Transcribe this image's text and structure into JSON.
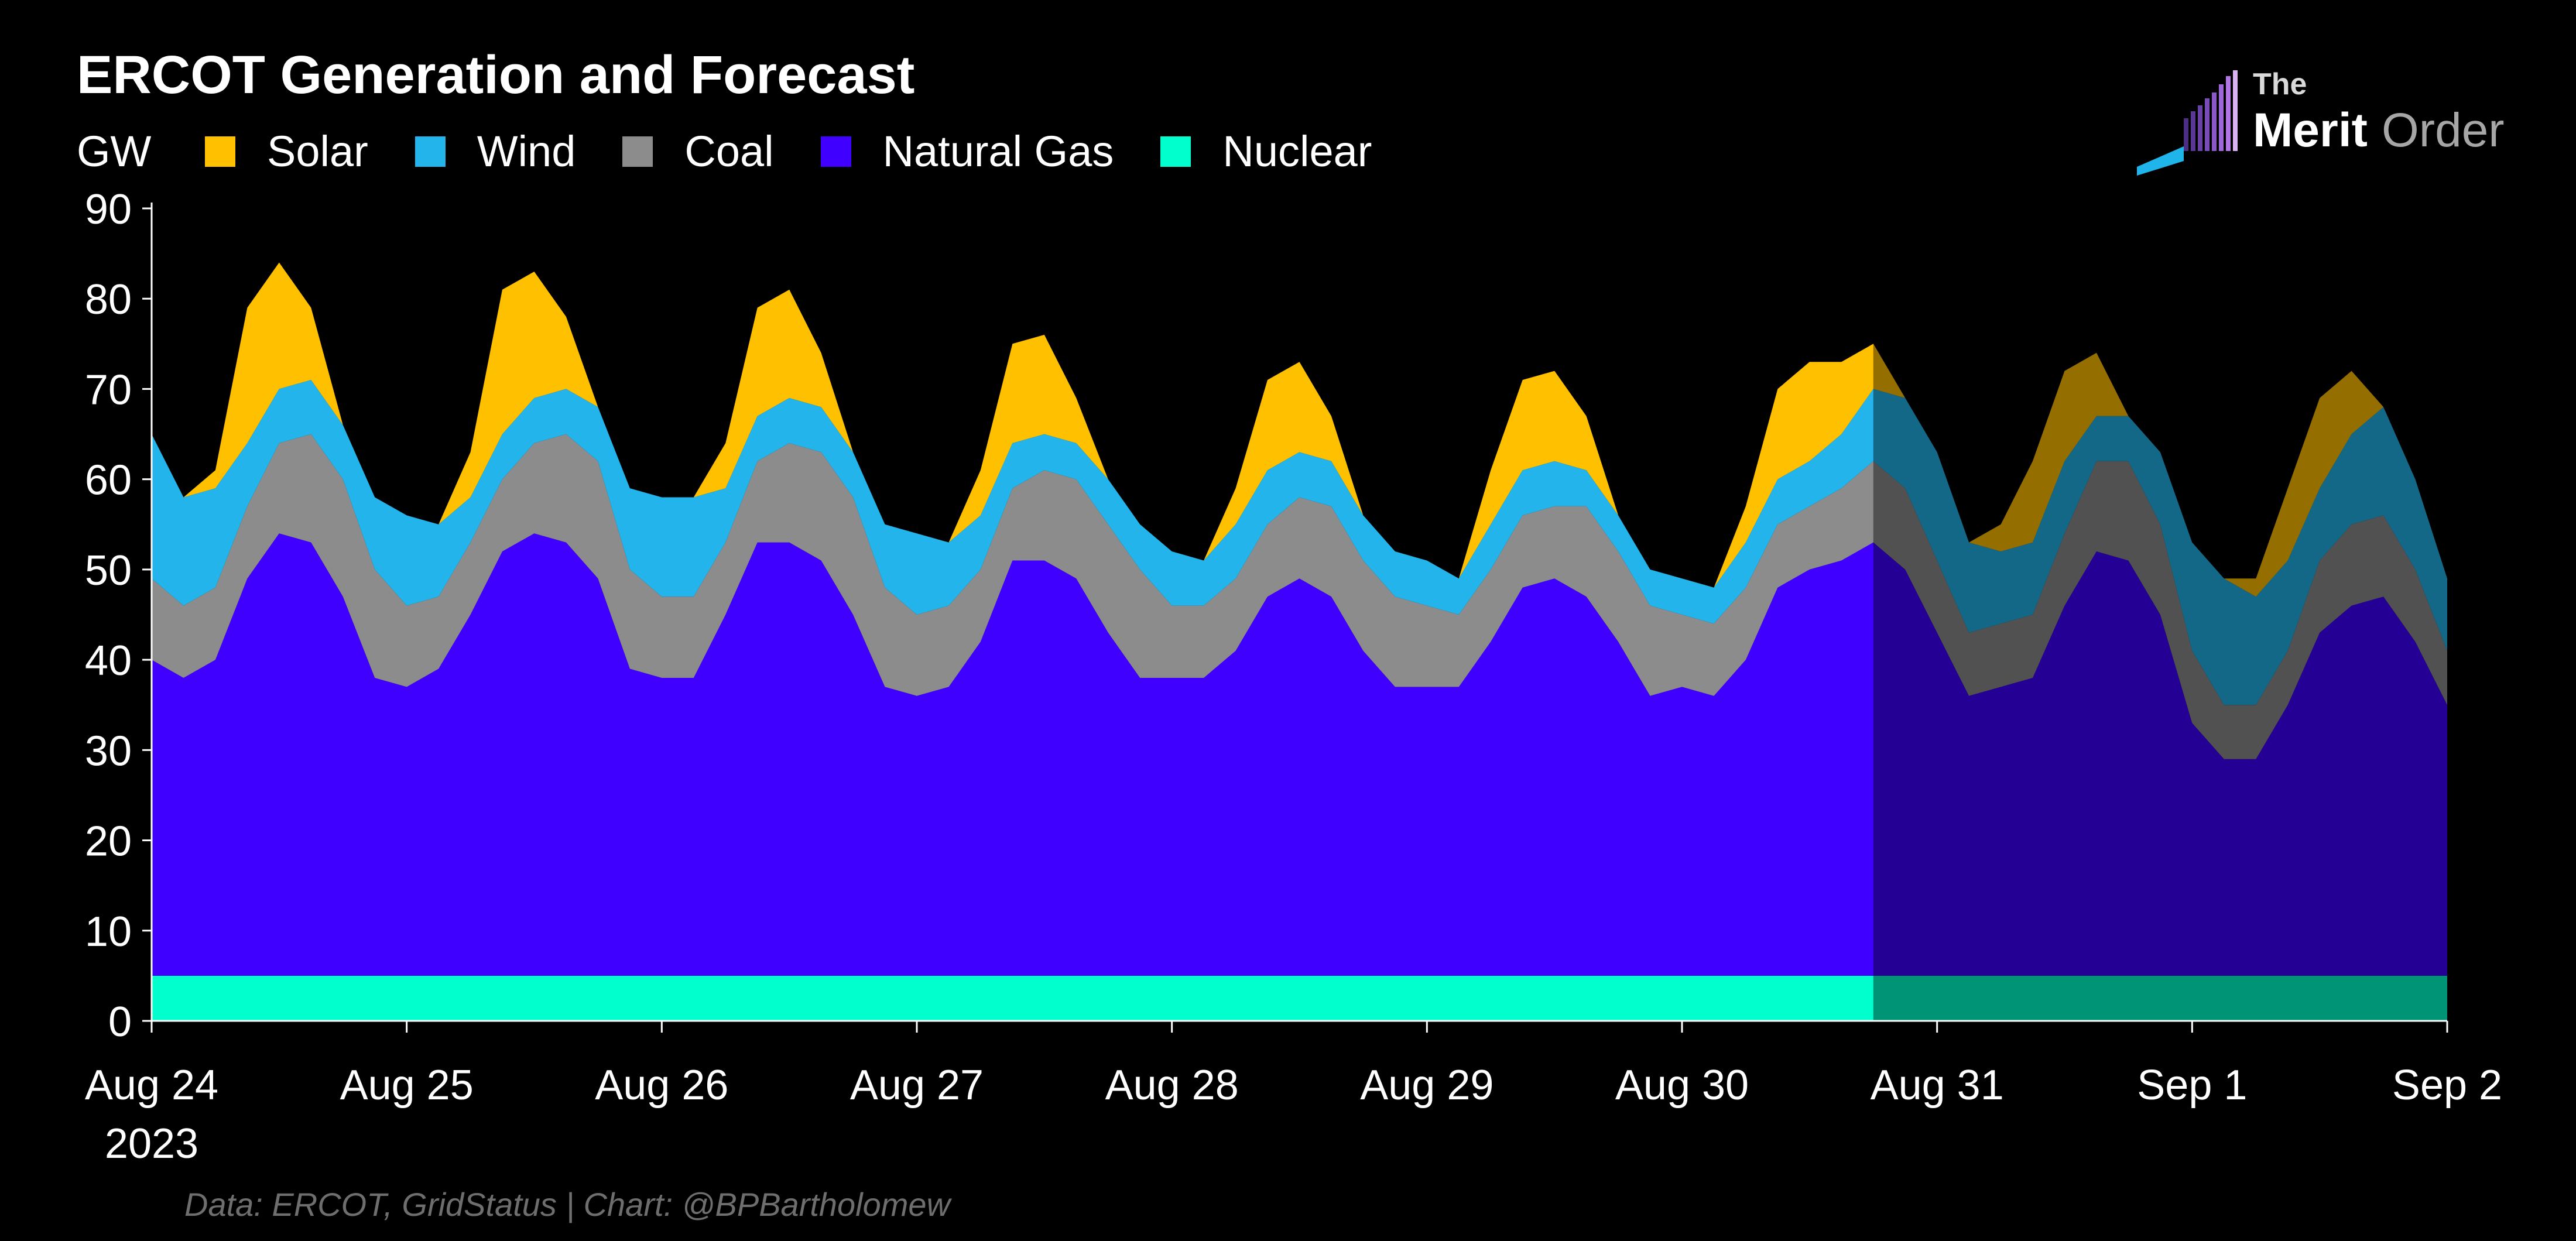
{
  "chart_data": {
    "type": "area",
    "stacked": true,
    "title": "ERCOT Generation and Forecast",
    "ylabel": "GW",
    "ylim": [
      0,
      90
    ],
    "yticks": [
      0,
      10,
      20,
      30,
      40,
      50,
      60,
      70,
      80,
      90
    ],
    "xlim_days": [
      0,
      9
    ],
    "xtick_labels": [
      "Aug 24",
      "Aug 25",
      "Aug 26",
      "Aug 27",
      "Aug 28",
      "Aug 29",
      "Aug 30",
      "Aug 31",
      "Sep 1",
      "Sep 2"
    ],
    "xtick_sublabel": "2023",
    "forecast_start_day": 6.75,
    "legend": [
      {
        "name": "Solar",
        "color": "#FFC000"
      },
      {
        "name": "Wind",
        "color": "#22B4EA"
      },
      {
        "name": "Coal",
        "color": "#8C8C8C"
      },
      {
        "name": "Natural Gas",
        "color": "#3F00FF"
      },
      {
        "name": "Nuclear",
        "color": "#00FFCC"
      }
    ],
    "x_days": [
      0,
      0.125,
      0.25,
      0.375,
      0.5,
      0.625,
      0.75,
      0.875,
      1,
      1.125,
      1.25,
      1.375,
      1.5,
      1.625,
      1.75,
      1.875,
      2,
      2.125,
      2.25,
      2.375,
      2.5,
      2.625,
      2.75,
      2.875,
      3,
      3.125,
      3.25,
      3.375,
      3.5,
      3.625,
      3.75,
      3.875,
      4,
      4.125,
      4.25,
      4.375,
      4.5,
      4.625,
      4.75,
      4.875,
      5,
      5.125,
      5.25,
      5.375,
      5.5,
      5.625,
      5.75,
      5.875,
      6,
      6.125,
      6.25,
      6.375,
      6.5,
      6.625,
      6.75,
      6.875,
      7,
      7.125,
      7.25,
      7.375,
      7.5,
      7.625,
      7.75,
      7.875,
      8,
      8.125,
      8.25,
      8.375,
      8.5,
      8.625,
      8.75,
      8.875,
      9
    ],
    "series": [
      {
        "name": "Nuclear",
        "color": "#00FFCC",
        "values": [
          5,
          5,
          5,
          5,
          5,
          5,
          5,
          5,
          5,
          5,
          5,
          5,
          5,
          5,
          5,
          5,
          5,
          5,
          5,
          5,
          5,
          5,
          5,
          5,
          5,
          5,
          5,
          5,
          5,
          5,
          5,
          5,
          5,
          5,
          5,
          5,
          5,
          5,
          5,
          5,
          5,
          5,
          5,
          5,
          5,
          5,
          5,
          5,
          5,
          5,
          5,
          5,
          5,
          5,
          5,
          5,
          5,
          5,
          5,
          5,
          5,
          5,
          5,
          5,
          5,
          5,
          5,
          5,
          5,
          5,
          5,
          5,
          5
        ]
      },
      {
        "name": "Natural Gas",
        "color": "#3F00FF",
        "values": [
          35,
          33,
          35,
          44,
          49,
          48,
          42,
          33,
          32,
          34,
          40,
          47,
          49,
          48,
          44,
          34,
          33,
          33,
          40,
          48,
          48,
          46,
          40,
          32,
          31,
          32,
          37,
          46,
          46,
          44,
          38,
          33,
          33,
          33,
          36,
          42,
          44,
          42,
          36,
          32,
          32,
          32,
          37,
          43,
          44,
          42,
          37,
          31,
          32,
          31,
          35,
          43,
          45,
          46,
          48,
          45,
          38,
          31,
          32,
          33,
          41,
          47,
          46,
          40,
          28,
          24,
          24,
          30,
          38,
          41,
          42,
          37,
          30
        ]
      },
      {
        "name": "Coal",
        "color": "#8C8C8C",
        "values": [
          9,
          8,
          8,
          8,
          10,
          12,
          13,
          12,
          9,
          8,
          8,
          8,
          10,
          12,
          13,
          11,
          9,
          9,
          8,
          9,
          11,
          12,
          13,
          11,
          9,
          9,
          8,
          8,
          10,
          11,
          12,
          12,
          8,
          8,
          8,
          8,
          9,
          10,
          10,
          10,
          9,
          8,
          8,
          8,
          8,
          10,
          10,
          10,
          8,
          8,
          8,
          7,
          7,
          8,
          9,
          9,
          8,
          7,
          7,
          7,
          8,
          10,
          11,
          10,
          8,
          6,
          6,
          6,
          8,
          9,
          9,
          8,
          6
        ]
      },
      {
        "name": "Wind",
        "color": "#22B4EA",
        "values": [
          16,
          12,
          11,
          7,
          6,
          6,
          6,
          8,
          10,
          8,
          5,
          5,
          5,
          5,
          6,
          9,
          11,
          11,
          6,
          5,
          5,
          5,
          5,
          7,
          9,
          7,
          6,
          5,
          4,
          4,
          5,
          5,
          6,
          5,
          6,
          6,
          5,
          5,
          5,
          5,
          5,
          4,
          5,
          5,
          5,
          4,
          4,
          4,
          4,
          4,
          5,
          5,
          5,
          6,
          8,
          10,
          12,
          10,
          8,
          8,
          8,
          5,
          5,
          8,
          12,
          14,
          12,
          10,
          8,
          10,
          12,
          10,
          8
        ]
      },
      {
        "name": "Solar",
        "color": "#FFC000",
        "values": [
          0,
          0,
          2,
          15,
          14,
          8,
          0,
          0,
          0,
          0,
          5,
          16,
          14,
          8,
          0,
          0,
          0,
          0,
          5,
          12,
          12,
          6,
          0,
          0,
          0,
          0,
          5,
          11,
          11,
          5,
          0,
          0,
          0,
          0,
          4,
          10,
          10,
          5,
          0,
          0,
          0,
          0,
          6,
          10,
          10,
          6,
          0,
          0,
          0,
          0,
          4,
          10,
          11,
          8,
          5,
          0,
          0,
          0,
          3,
          9,
          10,
          7,
          0,
          0,
          0,
          0,
          2,
          8,
          10,
          7,
          0,
          0,
          0
        ]
      }
    ]
  },
  "legend": [
    {
      "label": "Solar",
      "color": "#FFC000"
    },
    {
      "label": "Wind",
      "color": "#22B4EA"
    },
    {
      "label": "Coal",
      "color": "#8C8C8C"
    },
    {
      "label": "Natural Gas",
      "color": "#3F00FF"
    },
    {
      "label": "Nuclear",
      "color": "#00FFCC"
    }
  ],
  "header": {
    "title": "ERCOT Generation and Forecast",
    "unit": "GW"
  },
  "logo": {
    "the": "The",
    "merit": "Merit",
    "order": "Order"
  },
  "footer": {
    "source": "Data: ERCOT, GridStatus | Chart: @BPBartholomew"
  }
}
